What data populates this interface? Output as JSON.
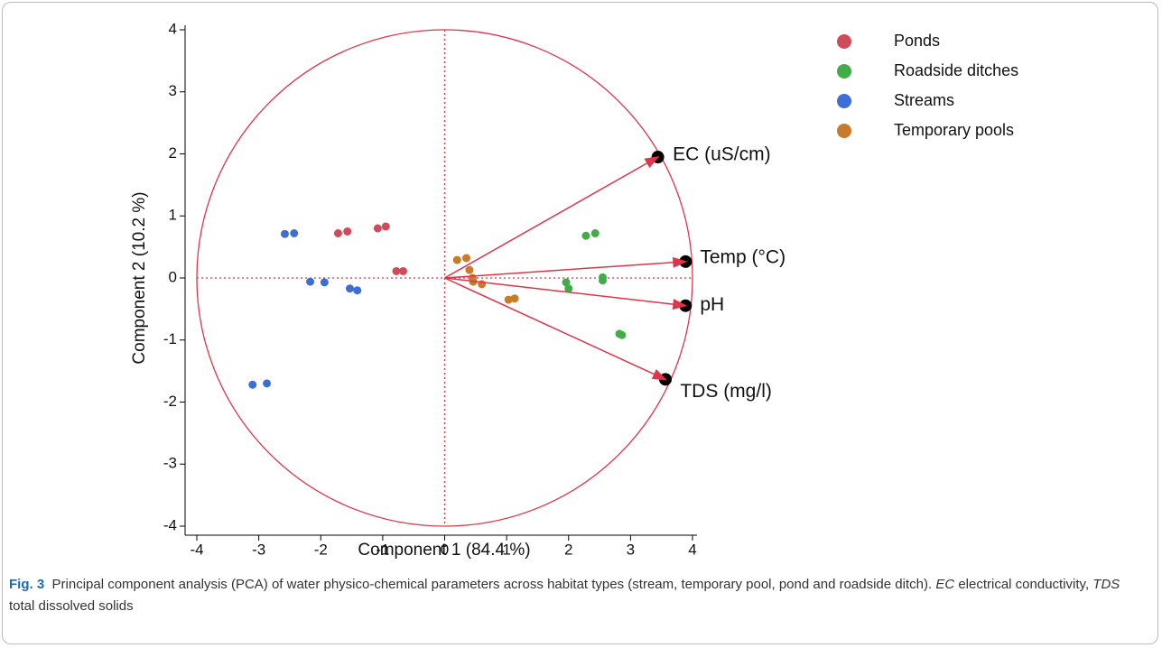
{
  "chart_data": {
    "type": "scatter",
    "xlabel": "Component 1  (84.4 %)",
    "ylabel": "Component 2  (10.2 %)",
    "xlim": [
      -4,
      4
    ],
    "ylim": [
      -4,
      4
    ],
    "xticks": [
      -4,
      -3,
      -2,
      -1,
      0,
      1,
      2,
      3,
      4
    ],
    "yticks": [
      -4,
      -3,
      -2,
      -1,
      0,
      1,
      2,
      3,
      4
    ],
    "legend": "upper right",
    "series": [
      {
        "name": "Ponds",
        "color": "#d04b5a",
        "x": [
          -1.72,
          -1.57,
          -1.08,
          -0.95,
          -0.78,
          -0.67
        ],
        "y": [
          0.72,
          0.75,
          0.8,
          0.83,
          0.11,
          0.11
        ]
      },
      {
        "name": "Roadside ditches",
        "color": "#3fae49",
        "x": [
          2.28,
          2.43,
          1.96,
          2.0,
          2.55,
          2.55,
          2.82,
          2.86
        ],
        "y": [
          0.68,
          0.72,
          -0.07,
          -0.17,
          0.01,
          -0.04,
          -0.9,
          -0.92
        ]
      },
      {
        "name": "Streams",
        "color": "#3b6fd6",
        "x": [
          -2.58,
          -2.43,
          -2.17,
          -1.94,
          -1.53,
          -1.41,
          -3.1,
          -2.87
        ],
        "y": [
          0.71,
          0.72,
          -0.06,
          -0.07,
          -0.17,
          -0.2,
          -1.72,
          -1.7
        ]
      },
      {
        "name": "Temporary pools",
        "color": "#c97b2a",
        "x": [
          0.2,
          0.35,
          0.4,
          0.45,
          0.46,
          0.6,
          1.03,
          1.13
        ],
        "y": [
          0.29,
          0.32,
          0.13,
          0.0,
          -0.06,
          -0.1,
          -0.35,
          -0.33
        ]
      }
    ],
    "vector_color": "#e0344a",
    "vectors": [
      {
        "name": "EC (uS/cm)",
        "x": 3.39,
        "y": 1.92
      },
      {
        "name": "Temp (°C)",
        "x": 3.83,
        "y": 0.26
      },
      {
        "name": "pH",
        "x": 3.83,
        "y": -0.44
      },
      {
        "name": "TDS (mg/l)",
        "x": 3.51,
        "y": -1.61
      }
    ]
  },
  "caption": {
    "label": "Fig. 3",
    "text": "Principal component analysis (PCA) of water physico-chemical parameters across habitat types (stream, temporary pool, pond and roadside ditch).",
    "abbreviations": [
      {
        "term": "EC",
        "definition": "electrical conductivity,"
      },
      {
        "term": "TDS",
        "definition": "total dissolved solids"
      }
    ]
  }
}
